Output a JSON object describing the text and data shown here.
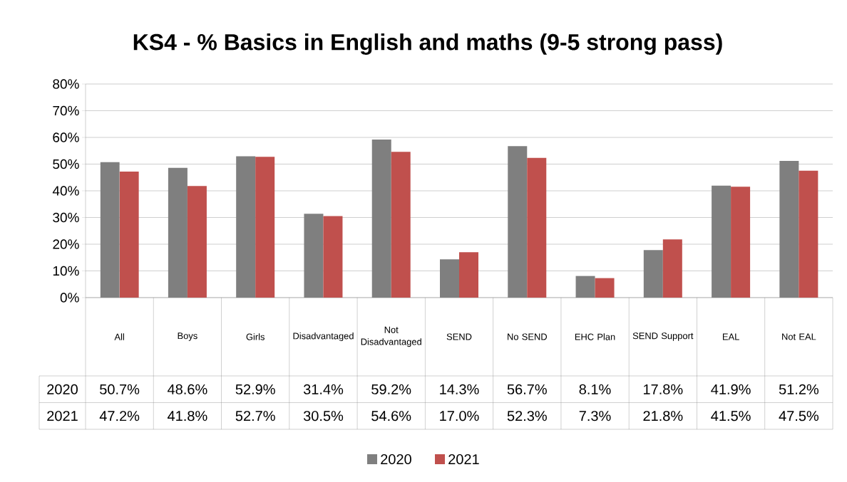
{
  "chart_data": {
    "type": "bar",
    "title": "KS4 - % Basics in English and maths (9-5 strong pass)",
    "categories": [
      "All",
      "Boys",
      "Girls",
      "Disadvantaged",
      "Not Disadvantaged",
      "SEND",
      "No SEND",
      "EHC Plan",
      "SEND Support",
      "EAL",
      "Not EAL"
    ],
    "series": [
      {
        "name": "2020",
        "color": "#7f7f7f",
        "values": [
          50.7,
          48.6,
          52.9,
          31.4,
          59.2,
          14.3,
          56.7,
          8.1,
          17.8,
          41.9,
          51.2
        ],
        "value_labels": [
          "50.7%",
          "48.6%",
          "52.9%",
          "31.4%",
          "59.2%",
          "14.3%",
          "56.7%",
          "8.1%",
          "17.8%",
          "41.9%",
          "51.2%"
        ]
      },
      {
        "name": "2021",
        "color": "#c0504d",
        "values": [
          47.2,
          41.8,
          52.7,
          30.5,
          54.6,
          17.0,
          52.3,
          7.3,
          21.8,
          41.5,
          47.5
        ],
        "value_labels": [
          "47.2%",
          "41.8%",
          "52.7%",
          "30.5%",
          "54.6%",
          "17.0%",
          "52.3%",
          "7.3%",
          "21.8%",
          "41.5%",
          "47.5%"
        ]
      }
    ],
    "ylim": [
      0,
      80
    ],
    "yticks": [
      {
        "value": 0,
        "label": "0%"
      },
      {
        "value": 10,
        "label": "10%"
      },
      {
        "value": 20,
        "label": "20%"
      },
      {
        "value": 30,
        "label": "30%"
      },
      {
        "value": 40,
        "label": "40%"
      },
      {
        "value": 50,
        "label": "50%"
      },
      {
        "value": 60,
        "label": "60%"
      },
      {
        "value": 70,
        "label": "70%"
      },
      {
        "value": 80,
        "label": "80%"
      }
    ],
    "grid": "y",
    "legend": "bottom"
  }
}
